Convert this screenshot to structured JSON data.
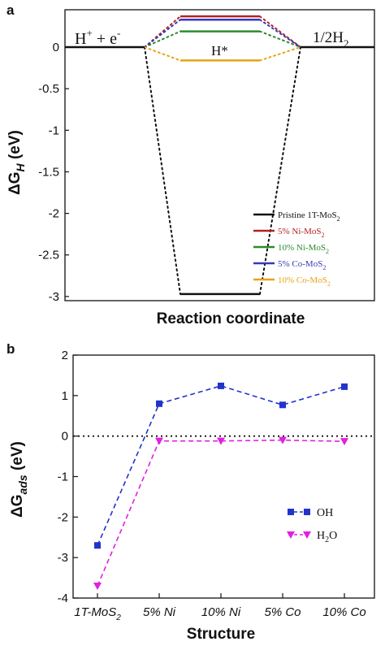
{
  "chart_data": [
    {
      "panel": "a",
      "type": "line",
      "xlabel": "Reaction coordinate",
      "ylabel": "ΔG",
      "ylabel_sub": "H",
      "ylabel_unit": " (eV)",
      "ylim": [
        -3.05,
        0.45
      ],
      "yticks": [
        "0",
        "-0.5",
        "-1",
        "-1.5",
        "-2",
        "-2.5",
        "-3"
      ],
      "state_labels": {
        "initial": "H",
        "initial_sup": "+",
        "initial_tail": " + e",
        "initial_tail_sup": "-",
        "intermediate": "H*",
        "final": "1/2H",
        "final_sub": "2"
      },
      "series": [
        {
          "name": "Pristine 1T-MoS",
          "name_sub": "2",
          "color": "#111111",
          "values": [
            0,
            -2.97,
            0
          ]
        },
        {
          "name": "5% Ni-MoS",
          "name_sub": "2",
          "color": "#b22222",
          "values": [
            0,
            0.37,
            0
          ]
        },
        {
          "name": "10% Ni-MoS",
          "name_sub": "2",
          "color": "#2e8b2e",
          "values": [
            0,
            0.19,
            0
          ]
        },
        {
          "name": "5% Co-MoS",
          "name_sub": "2",
          "color": "#3838b8",
          "values": [
            0,
            0.33,
            0
          ]
        },
        {
          "name": "10% Co-MoS",
          "name_sub": "2",
          "color": "#e8a317",
          "values": [
            0,
            -0.16,
            0
          ]
        }
      ]
    },
    {
      "panel": "b",
      "type": "line",
      "xlabel": "Structure",
      "ylabel": "ΔG",
      "ylabel_sub": "ads",
      "ylabel_unit": " (eV)",
      "ylim": [
        -4,
        2
      ],
      "yticks": [
        "2",
        "1",
        "0",
        "-1",
        "-2",
        "-3",
        "-4"
      ],
      "categories": [
        {
          "label": "1T-MoS",
          "sub": "2"
        },
        {
          "label": "5% Ni",
          "sub": ""
        },
        {
          "label": "10% Ni",
          "sub": ""
        },
        {
          "label": "5% Co",
          "sub": ""
        },
        {
          "label": "10% Co",
          "sub": ""
        }
      ],
      "series": [
        {
          "name": "OH",
          "name_sub": "",
          "tail": "",
          "color": "#2233cc",
          "marker": "square",
          "values": [
            -2.7,
            0.8,
            1.24,
            0.77,
            1.22
          ]
        },
        {
          "name": "H",
          "name_sub": "2",
          "tail": "O",
          "color": "#e020e0",
          "marker": "triangle-down",
          "values": [
            -3.7,
            -0.12,
            -0.12,
            -0.1,
            -0.13
          ]
        }
      ]
    }
  ]
}
